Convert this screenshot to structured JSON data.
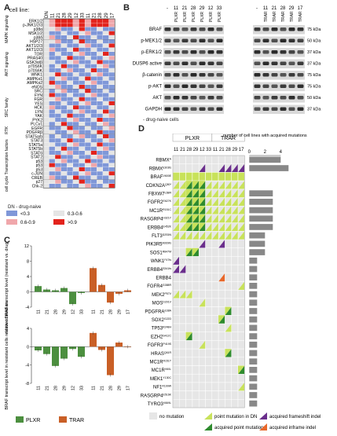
{
  "panel_labels": {
    "a": "A",
    "b": "B",
    "c": "C",
    "d": "D"
  },
  "panel_a": {
    "cell_line_label": "cell line:",
    "columns": [
      "DN",
      "11",
      "21",
      "28",
      "29",
      "12",
      "33",
      "11",
      "21",
      "28",
      "29",
      "17"
    ],
    "groups": [
      {
        "name": "MAPK signaling",
        "rows": [
          "ERK1/2",
          "p-JNK1/2/3",
          "p38α",
          "MSK1/2",
          "p38δ"
        ]
      },
      {
        "name": "AKT signaling",
        "rows": [
          "HSP27",
          "AKT1/2/3",
          "AKT1/2/3",
          "TOR",
          "PRAS40",
          "GSK3α/β",
          "p70S6K",
          "p70S6K",
          "WNK1",
          "AMPKα1",
          "AMPKα2",
          "eNOS"
        ]
      },
      {
        "name": "SRC family",
        "rows": [
          "SRC",
          "FYN",
          "FGR",
          "YES",
          "HCK",
          "LYN",
          "YAK",
          "PYK2",
          "PLCγ1"
        ]
      },
      {
        "name": "RTK",
        "rows": [
          "EGFR",
          "PDGFRβ"
        ]
      },
      {
        "name": "Transcription factors",
        "rows": [
          "STAT5a/b",
          "STAT3",
          "STAT5a",
          "STAT5b",
          "STAT6",
          "STAT2",
          "p53",
          "p53",
          "p53",
          "c-JUN",
          "CREB"
        ]
      },
      {
        "name": "cell cycle",
        "rows": [
          "p27",
          "Chk-2"
        ]
      }
    ],
    "dn_note": "DN - drug-naive",
    "legend": [
      {
        "label": "<0.3",
        "color": "#7f97d8"
      },
      {
        "label": "0.3-0.6",
        "color": "#e5e5e5"
      },
      {
        "label": "0.6-0.9",
        "color": "#f0a7ab"
      },
      {
        "label": ">0.9",
        "color": "#e3231c"
      }
    ]
  },
  "panel_b": {
    "left_cols": [
      "-",
      "11",
      "21",
      "28",
      "29",
      "12",
      "33"
    ],
    "right_cols": [
      "-",
      "11",
      "21",
      "28",
      "29",
      "17"
    ],
    "plxr": "PLXR",
    "trar": "TRAR",
    "bands": [
      "BRAF",
      "p-MEK1/2",
      "p-ERK1/2",
      "DUSP6 active",
      "β-catenin",
      "p-AKT",
      "AKT",
      "GAPDH"
    ],
    "kda": [
      "75 kDa",
      "50 kDa",
      "37 kDa",
      "37 kDa",
      "75 kDa",
      "75 kDa",
      "50 kDa",
      "37 kDa"
    ],
    "note": "- drug-naive cells"
  },
  "panel_c": {
    "ylabel1": "relative BRAF transcript level (resistant vs. drug-naive cells)",
    "ylabel2": "BRAF transcript level in resistant cells relative to median",
    "ticks1": [
      "12",
      "8",
      "4",
      "0",
      "-4"
    ],
    "ticks2": [
      "4",
      "0",
      "-4",
      "-8"
    ],
    "cats_plxr": [
      "11",
      "21",
      "28",
      "29",
      "12",
      "33"
    ],
    "cats_trar": [
      "11",
      "21",
      "28",
      "29",
      "17"
    ],
    "legend_plxr": "PLXR",
    "legend_trar": "TRAR",
    "colors": {
      "plxr": "#4c8f3f",
      "trar": "#c95f26"
    }
  },
  "chart_data": [
    {
      "type": "bar",
      "title": "",
      "ylabel": "relative BRAF transcript level (resistant vs. drug-naive cells)",
      "ylim": [
        -4,
        12
      ],
      "categories": [
        "11",
        "21",
        "28",
        "29",
        "12",
        "33",
        "11",
        "21",
        "28",
        "29",
        "17"
      ],
      "series": [
        {
          "name": "PLXR",
          "values": [
            1.5,
            0.6,
            0.4,
            1.0,
            -3.2,
            -0.3,
            null,
            null,
            null,
            null,
            null
          ]
        },
        {
          "name": "TRAR",
          "values": [
            null,
            null,
            null,
            null,
            null,
            null,
            6.2,
            1.8,
            -2.8,
            -0.5,
            0.4
          ]
        }
      ]
    },
    {
      "type": "bar",
      "title": "",
      "ylabel": "BRAF transcript level in resistant cells relative to median",
      "ylim": [
        -8,
        4
      ],
      "categories": [
        "11",
        "21",
        "28",
        "29",
        "12",
        "33",
        "11",
        "21",
        "28",
        "29",
        "17"
      ],
      "series": [
        {
          "name": "PLXR",
          "values": [
            -0.8,
            -1.6,
            -4.2,
            -2.6,
            -0.5,
            -2.2,
            null,
            null,
            null,
            null,
            null
          ]
        },
        {
          "name": "TRAR",
          "values": [
            null,
            null,
            null,
            null,
            null,
            null,
            3.0,
            -0.7,
            -6.2,
            0.9,
            0.0
          ]
        }
      ]
    }
  ],
  "panel_d": {
    "group_plxr": "PLXR",
    "group_trar": "TRAR",
    "cols": [
      "11",
      "21",
      "28",
      "29",
      "12",
      "33",
      "11",
      "21",
      "28",
      "29",
      "17"
    ],
    "right_header": "number of cell lines with acquired mutations",
    "right_ticks": [
      "0",
      "2",
      "4"
    ],
    "genes": [
      {
        "name": "RBMX",
        "mut": "A",
        "codes": "00000000000",
        "count": 4
      },
      {
        "name": "RBMX",
        "mut": "E303fs",
        "codes": "0000I00IIII",
        "count": 5
      },
      {
        "name": "BRAF",
        "mut": "V600E",
        "codes": "BBBBBBBBBBB",
        "count": 0
      },
      {
        "name": "CDKN2A",
        "mut": "Q50*",
        "codes": "AAPPPAAAAAA",
        "count": 0
      },
      {
        "name": "FBXW7",
        "mut": "L68R",
        "codes": "AAPPPAAAAAA",
        "count": 3
      },
      {
        "name": "FGFR2",
        "mut": "E627K",
        "codes": "AAPPPAAAAAA",
        "count": 3
      },
      {
        "name": "MC1R",
        "mut": "R151C",
        "codes": "AAPPPAAAAAA",
        "count": 3
      },
      {
        "name": "RASGRP4",
        "mut": "H321Y",
        "codes": "AAPPPAAAAAA",
        "count": 3
      },
      {
        "name": "ERBB4",
        "mut": "E452K",
        "codes": "AAPPPAAAAAA",
        "count": 3
      },
      {
        "name": "FLT3",
        "mut": "D2S5N",
        "codes": "AAAAAAAAAAA",
        "count": 2
      },
      {
        "name": "PIK3R5",
        "mut": "M269fs",
        "codes": "0000I00I000",
        "count": 2
      },
      {
        "name": "SOS1",
        "mut": "R847M",
        "codes": "00PP0000000",
        "count": 2
      },
      {
        "name": "WNK1",
        "mut": "F47fs",
        "codes": "I0000000000",
        "count": 1
      },
      {
        "name": "ERBB4",
        "mut": "S341fs",
        "codes": "II000000000",
        "count": 1
      },
      {
        "name": "ERBB4",
        "mut": "",
        "codes": "0000000N000",
        "count": 1
      },
      {
        "name": "FGFR4",
        "mut": "G388R",
        "codes": "0000000000A",
        "count": 1
      },
      {
        "name": "MEK2",
        "mut": "P57V",
        "codes": "AAA00000000",
        "count": 1
      },
      {
        "name": "MOS",
        "mut": "D201V",
        "codes": "0000A000000",
        "count": 1
      },
      {
        "name": "PDGFRA",
        "mut": "E38A",
        "codes": "00000000P00",
        "count": 1
      },
      {
        "name": "SOX2",
        "mut": "G22D",
        "codes": "0000000P000",
        "count": 1
      },
      {
        "name": "TP53",
        "mut": "R248H",
        "codes": "00000000A00",
        "count": 1
      },
      {
        "name": "EZH2",
        "mut": "S412C",
        "codes": "00P00000000",
        "count": 1
      },
      {
        "name": "FGFR3",
        "mut": "P419S",
        "codes": "0000A000000",
        "count": 1
      },
      {
        "name": "HRAS",
        "mut": "Q61R",
        "codes": "00000000P00",
        "count": 1
      },
      {
        "name": "MC1R",
        "mut": "R151T",
        "codes": "00000000000",
        "count": 1
      },
      {
        "name": "MC1R",
        "mut": "V60L",
        "codes": "0000000000P",
        "count": 1
      },
      {
        "name": "MEK1",
        "mut": "Y130C",
        "codes": "00000000000",
        "count": 1
      },
      {
        "name": "NF1",
        "mut": "R199W",
        "codes": "0000000000A",
        "count": 1
      },
      {
        "name": "RASGRP4",
        "mut": "E516K",
        "codes": "00000000000",
        "count": 1
      },
      {
        "name": "TYRO3",
        "mut": "V669L",
        "codes": "00000000000",
        "count": 1
      }
    ],
    "legend": {
      "no_mut": "no mutation",
      "pm_dn": "point mutation in DN",
      "apm": "acquired point mutation",
      "afs": "acquired frameshift indel",
      "aif": "acquired inframe indel"
    }
  }
}
